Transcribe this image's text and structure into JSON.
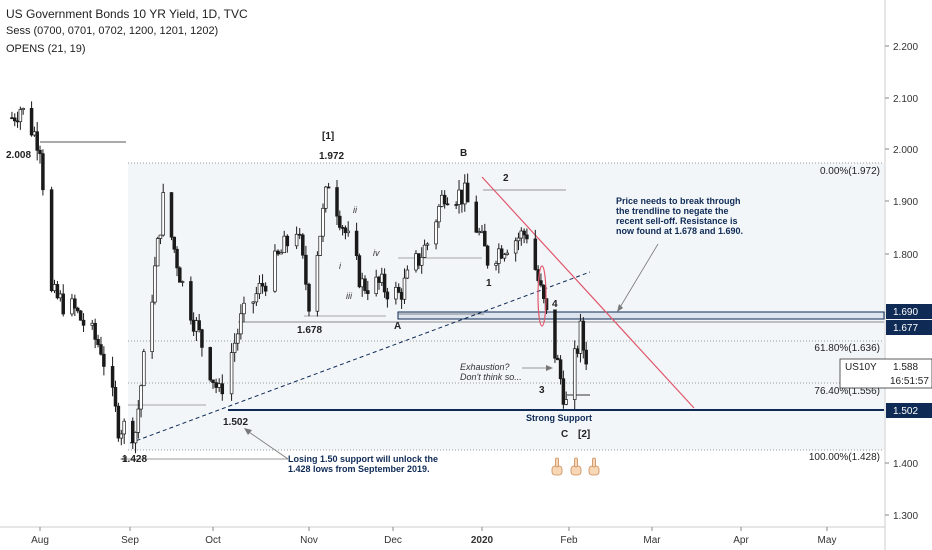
{
  "header": {
    "title": "US Government Bonds 10 YR Yield, 1D, TVC",
    "sessions": "Sess (0700, 0701, 0702, 1200, 1201, 1202)",
    "opens": "OPENS (21, 19)"
  },
  "price_axis": {
    "ticks": [
      "2.200",
      "2.100",
      "2.000",
      "1.900",
      "1.800",
      "1.400",
      "1.300"
    ],
    "badge_1690": "1.690",
    "badge_1677": "1.677",
    "badge_1502": "1.502",
    "symbol": "US10Y",
    "last_price": "1.588",
    "countdown": "16:51:57"
  },
  "time_axis": {
    "labels": [
      "Aug",
      "Sep",
      "Oct",
      "Nov",
      "Dec",
      "2020",
      "Feb",
      "Mar",
      "Apr",
      "May"
    ]
  },
  "annotations": {
    "lvl_2008": "2.008",
    "lvl_1972": "1.972",
    "lvl_1678": "1.678",
    "lvl_1502": "1.502",
    "lvl_1428": "1.428",
    "wave_1_bracket": "[1]",
    "wave_b": "B",
    "wave_a": "A",
    "wave_c": "C",
    "wave_2_bracket": "[2]",
    "wave_1": "1",
    "wave_2": "2",
    "wave_3": "3",
    "wave_4": "4",
    "sub_i": "i",
    "sub_ii": "ii",
    "sub_iii": "iii",
    "sub_iv": "iv",
    "fib_0": "0.00%(1.972)",
    "fib_618": "61.80%(1.636)",
    "fib_764": "76.40%(1.556)",
    "fib_100": "100.00%(1.428)",
    "note_trend_1": "Price needs to break through",
    "note_trend_2": "the trendline to negate the",
    "note_trend_3": "recent sell-off. Resistance is",
    "note_trend_4": "now found at 1.678 and 1.690.",
    "note_exh_1": "Exhaustion?",
    "note_exh_2": "Don't think so...",
    "note_support": "Strong Support",
    "note_lose_1": "Losing 1.50 support will unlock the",
    "note_lose_2": "1.428 lows from September 2019."
  },
  "colors": {
    "up": "#ffffff",
    "down": "#1a1a1a",
    "candle_outline": "#1a1a1a",
    "navy": "#0e2a55",
    "red_trend": "#e0566b",
    "zone_fill": "#dde4ee",
    "fib_band": "#f3f6f9",
    "text": "#222222"
  },
  "chart_data": {
    "type": "candlestick",
    "symbol": "US10Y",
    "timeframe": "1D",
    "x_range": [
      "2019-07-22",
      "2020-05-10"
    ],
    "y_range": [
      1.27,
      2.3
    ],
    "y_scale": "linear",
    "grid": false,
    "horizontal_levels": [
      2.008,
      1.972,
      1.69,
      1.678,
      1.677,
      1.636,
      1.556,
      1.502,
      1.428
    ],
    "fibonacci": [
      {
        "label": "0.00%",
        "value": 1.972
      },
      {
        "label": "61.80%",
        "value": 1.636
      },
      {
        "label": "76.40%",
        "value": 1.556
      },
      {
        "label": "100.00%",
        "value": 1.428
      }
    ],
    "resistance_zone": [
      1.677,
      1.69
    ],
    "last_price": 1.588,
    "anchor_points": [
      {
        "date": "2019-07-22",
        "close": 2.06
      },
      {
        "date": "2019-07-25",
        "close": 2.08
      },
      {
        "date": "2019-08-01",
        "close": 2.01
      },
      {
        "date": "2019-08-05",
        "close": 1.72
      },
      {
        "date": "2019-08-13",
        "close": 1.69
      },
      {
        "date": "2019-08-22",
        "close": 1.62
      },
      {
        "date": "2019-08-28",
        "close": 1.47
      },
      {
        "date": "2019-09-03",
        "close": 1.46
      },
      {
        "date": "2019-09-13",
        "close": 1.9
      },
      {
        "date": "2019-09-20",
        "close": 1.74
      },
      {
        "date": "2019-10-03",
        "close": 1.53
      },
      {
        "date": "2019-10-10",
        "close": 1.67
      },
      {
        "date": "2019-10-18",
        "close": 1.75
      },
      {
        "date": "2019-10-28",
        "close": 1.85
      },
      {
        "date": "2019-11-01",
        "close": 1.71
      },
      {
        "date": "2019-11-08",
        "close": 1.94
      },
      {
        "date": "2019-11-20",
        "close": 1.74
      },
      {
        "date": "2019-11-26",
        "close": 1.74
      },
      {
        "date": "2019-12-03",
        "close": 1.72
      },
      {
        "date": "2019-12-13",
        "close": 1.82
      },
      {
        "date": "2019-12-19",
        "close": 1.92
      },
      {
        "date": "2019-12-26",
        "close": 1.91
      },
      {
        "date": "2020-01-03",
        "close": 1.79
      },
      {
        "date": "2020-01-10",
        "close": 1.82
      },
      {
        "date": "2020-01-17",
        "close": 1.84
      },
      {
        "date": "2020-01-27",
        "close": 1.61
      },
      {
        "date": "2020-01-31",
        "close": 1.51
      },
      {
        "date": "2020-02-05",
        "close": 1.65
      },
      {
        "date": "2020-02-07",
        "close": 1.588
      }
    ]
  }
}
